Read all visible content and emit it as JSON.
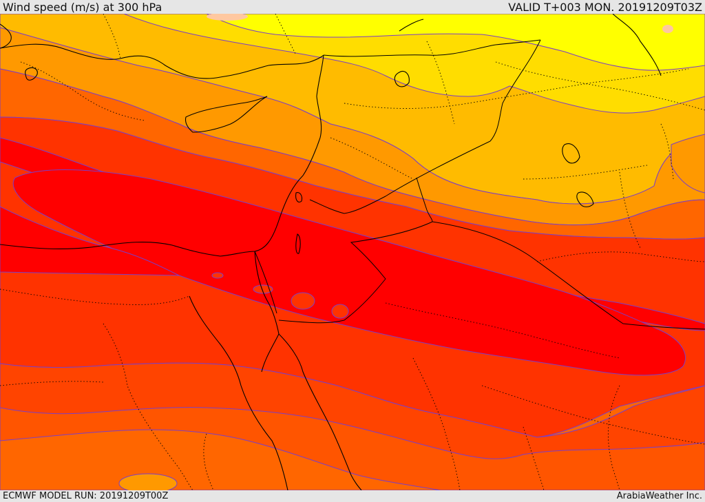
{
  "header": {
    "title": "Wind speed (m/s) at 300 hPa",
    "valid_time": "VALID T+003 MON. 20191209T03Z"
  },
  "footer": {
    "model_run": "ECMWF MODEL RUN: 20191209T00Z",
    "credit": "ArabiaWeather Inc."
  },
  "map": {
    "variable": "wind speed",
    "units": "m/s",
    "level": "300 hPa",
    "colors": {
      "weakest": "#ffff00",
      "band_2": "#ffdd00",
      "band_3": "#ffbb00",
      "band_4": "#ff9900",
      "band_5": "#ff6600",
      "band_6": "#ff3300",
      "strongest": "#ff0000",
      "peak_patch": "#ffc8a0",
      "contour_line": "#7a3ec8",
      "border_line": "#000000"
    }
  }
}
